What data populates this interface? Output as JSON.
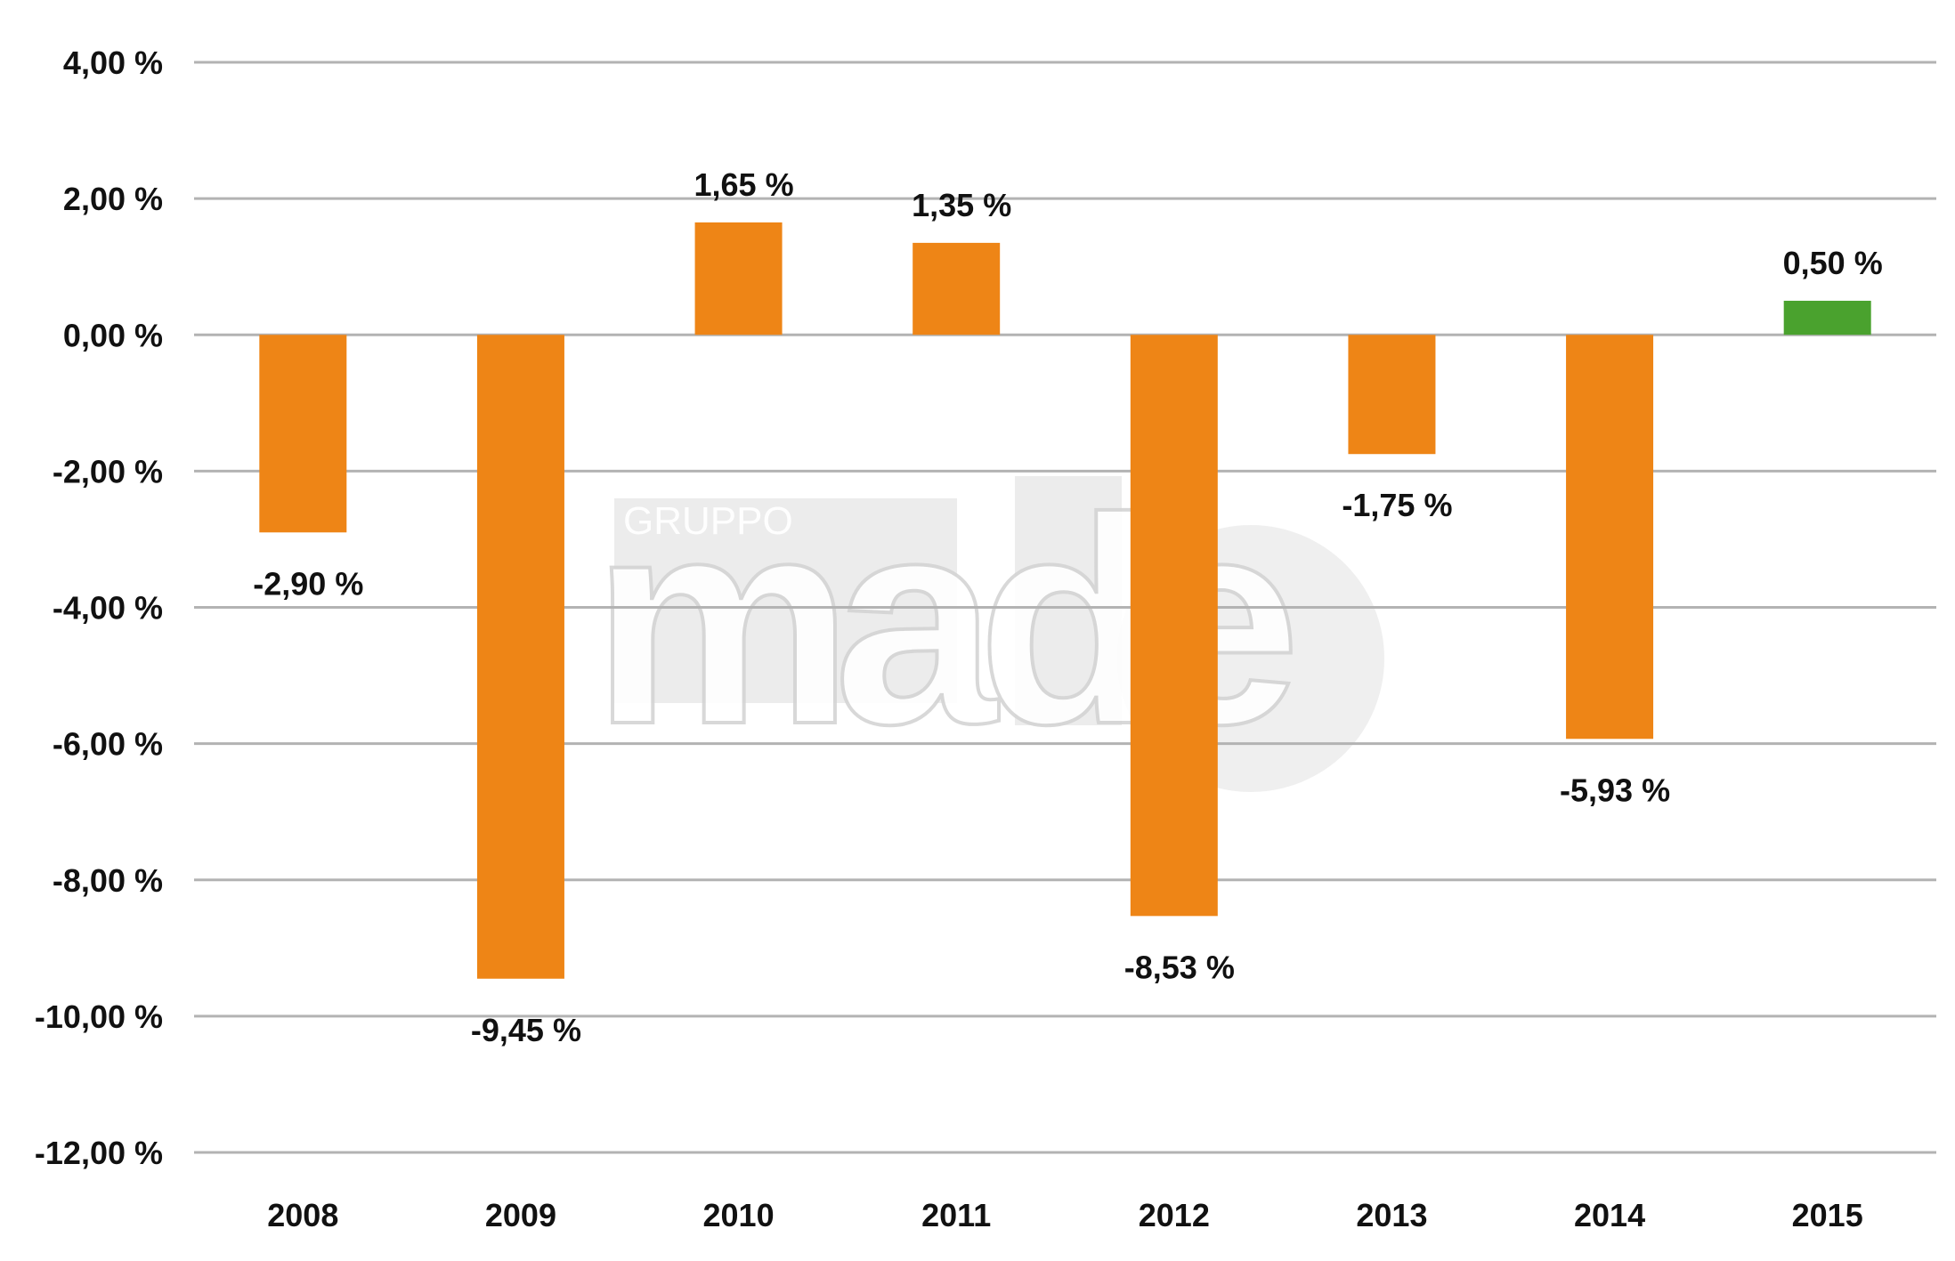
{
  "chart_data": {
    "type": "bar",
    "title": "",
    "xlabel": "",
    "ylabel": "",
    "categories": [
      "2008",
      "2009",
      "2010",
      "2011",
      "2012",
      "2013",
      "2014",
      "2015"
    ],
    "values": [
      -2.9,
      -9.45,
      1.65,
      1.35,
      -8.53,
      -1.75,
      -5.93,
      0.5
    ],
    "data_labels": [
      "-2,90 %",
      "-9,45 %",
      "1,65 %",
      "1,35 %",
      "-8,53 %",
      "-1,75 %",
      "-5,93 %",
      "0,50 %"
    ],
    "bar_colors": [
      "#ee8516",
      "#ee8516",
      "#ee8516",
      "#ee8516",
      "#ee8516",
      "#ee8516",
      "#ee8516",
      "#4aa22e"
    ],
    "ylim": [
      -12,
      4
    ],
    "yticks": [
      4,
      2,
      0,
      -2,
      -4,
      -6,
      -8,
      -10,
      -12
    ],
    "ytick_labels": [
      "4,00 %",
      "2,00 %",
      "0,00 %",
      "-2,00 %",
      "-4,00 %",
      "-6,00 %",
      "-8,00 %",
      "-10,00 %",
      "-12,00 %"
    ],
    "grid": true,
    "legend": "none"
  },
  "watermark": {
    "small": "GRUPPO",
    "big": "made"
  },
  "colors": {
    "gridline": "#b3b3b3",
    "text": "#111111",
    "watermark": "#d9d9d9"
  }
}
